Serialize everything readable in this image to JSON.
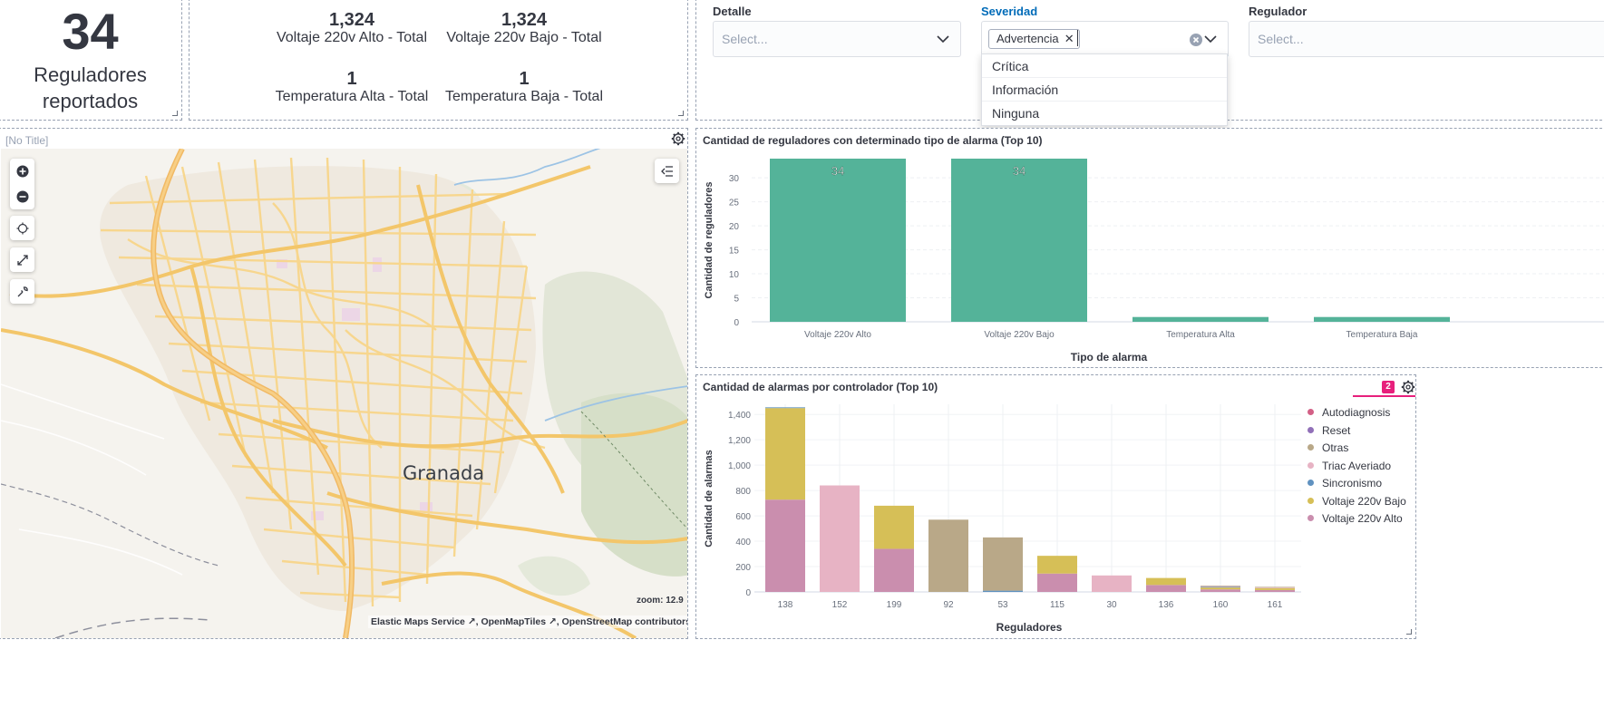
{
  "metric_reguladores": {
    "value": "34",
    "label_line1": "Reguladores",
    "label_line2": "reportados"
  },
  "metric_totals": [
    {
      "value": "1,324",
      "label": "Voltaje 220v Alto - Total"
    },
    {
      "value": "1,324",
      "label": "Voltaje 220v Bajo - Total"
    },
    {
      "value": "1",
      "label": "Temperatura Alta - Total"
    },
    {
      "value": "1",
      "label": "Temperatura Baja - Total"
    }
  ],
  "controls": {
    "detalle": {
      "label": "Detalle",
      "placeholder": "Select..."
    },
    "severidad": {
      "label": "Severidad",
      "selected_pill": "Advertencia",
      "options": [
        "Crítica",
        "Información",
        "Ninguna"
      ]
    },
    "regulador": {
      "label": "Regulador",
      "placeholder": "Select..."
    }
  },
  "map": {
    "title": "[No Title]",
    "city_label": "Granada",
    "zoom_text": "zoom: 12.9",
    "attributions": [
      "Elastic Maps Service",
      "OpenMapTiles",
      "OpenStreetMap contributors"
    ],
    "icons": [
      "plus-icon",
      "minus-icon",
      "crosshair-icon",
      "expand-icon",
      "wrench-icon",
      "collapse-layers-icon"
    ]
  },
  "bar_chart": {
    "title": "Cantidad de reguladores con determinado tipo de alarma (Top 10)",
    "xlabel": "Tipo de alarma",
    "ylabel": "Cantidad de reguladores",
    "color": "#54b399"
  },
  "stacked_chart": {
    "title": "Cantidad de alarmas por controlador (Top 10)",
    "xlabel": "Reguladores",
    "ylabel": "Cantidad de alarmas",
    "badge": "2"
  },
  "chart_data": [
    {
      "type": "bar",
      "title": "Cantidad de reguladores con determinado tipo de alarma (Top 10)",
      "xlabel": "Tipo de alarma",
      "ylabel": "Cantidad de reguladores",
      "categories": [
        "Voltaje 220v Alto",
        "Voltaje 220v Bajo",
        "Temperatura Alta",
        "Temperatura Baja"
      ],
      "values": [
        34,
        34,
        1,
        1
      ],
      "data_labels": [
        "34",
        "34",
        "",
        ""
      ],
      "yticks": [
        0,
        5,
        10,
        15,
        20,
        25,
        30
      ],
      "ylim": [
        0,
        34
      ],
      "grid": true
    },
    {
      "type": "bar",
      "stacked": true,
      "title": "Cantidad de alarmas por controlador (Top 10)",
      "xlabel": "Reguladores",
      "ylabel": "Cantidad de alarmas",
      "categories": [
        "138",
        "152",
        "199",
        "92",
        "53",
        "115",
        "30",
        "136",
        "160",
        "161"
      ],
      "yticks": [
        0,
        200,
        400,
        600,
        800,
        1000,
        1200,
        1400
      ],
      "ytick_labels": [
        "0",
        "200",
        "400",
        "600",
        "800",
        "1,000",
        "1,200",
        "1,400"
      ],
      "ylim": [
        0,
        1480
      ],
      "legend_position": "right",
      "series": [
        {
          "name": "Voltaje 220v Alto",
          "color": "#ca8eae",
          "values": [
            728,
            0,
            340,
            0,
            0,
            145,
            0,
            55,
            20,
            15
          ]
        },
        {
          "name": "Voltaje 220v Bajo",
          "color": "#d6bf57",
          "values": [
            722,
            0,
            340,
            0,
            0,
            140,
            0,
            55,
            15,
            15
          ]
        },
        {
          "name": "Sincronismo",
          "color": "#6092c0",
          "values": [
            6,
            0,
            0,
            0,
            10,
            0,
            0,
            0,
            5,
            0
          ]
        },
        {
          "name": "Triac Averiado",
          "color": "#e7b3c4",
          "values": [
            0,
            840,
            0,
            0,
            0,
            0,
            130,
            0,
            5,
            5
          ]
        },
        {
          "name": "Otras",
          "color": "#b9a888",
          "values": [
            0,
            0,
            0,
            570,
            420,
            0,
            0,
            0,
            5,
            5
          ]
        },
        {
          "name": "Reset",
          "color": "#9170b8",
          "values": [
            0,
            0,
            0,
            0,
            0,
            0,
            0,
            0,
            0,
            0
          ]
        },
        {
          "name": "Autodiagnosis",
          "color": "#d36086",
          "values": [
            0,
            0,
            0,
            0,
            0,
            0,
            0,
            0,
            0,
            0
          ]
        }
      ],
      "legend_order": [
        "Autodiagnosis",
        "Reset",
        "Otras",
        "Triac Averiado",
        "Sincronismo",
        "Voltaje 220v Bajo",
        "Voltaje 220v Alto"
      ]
    }
  ]
}
